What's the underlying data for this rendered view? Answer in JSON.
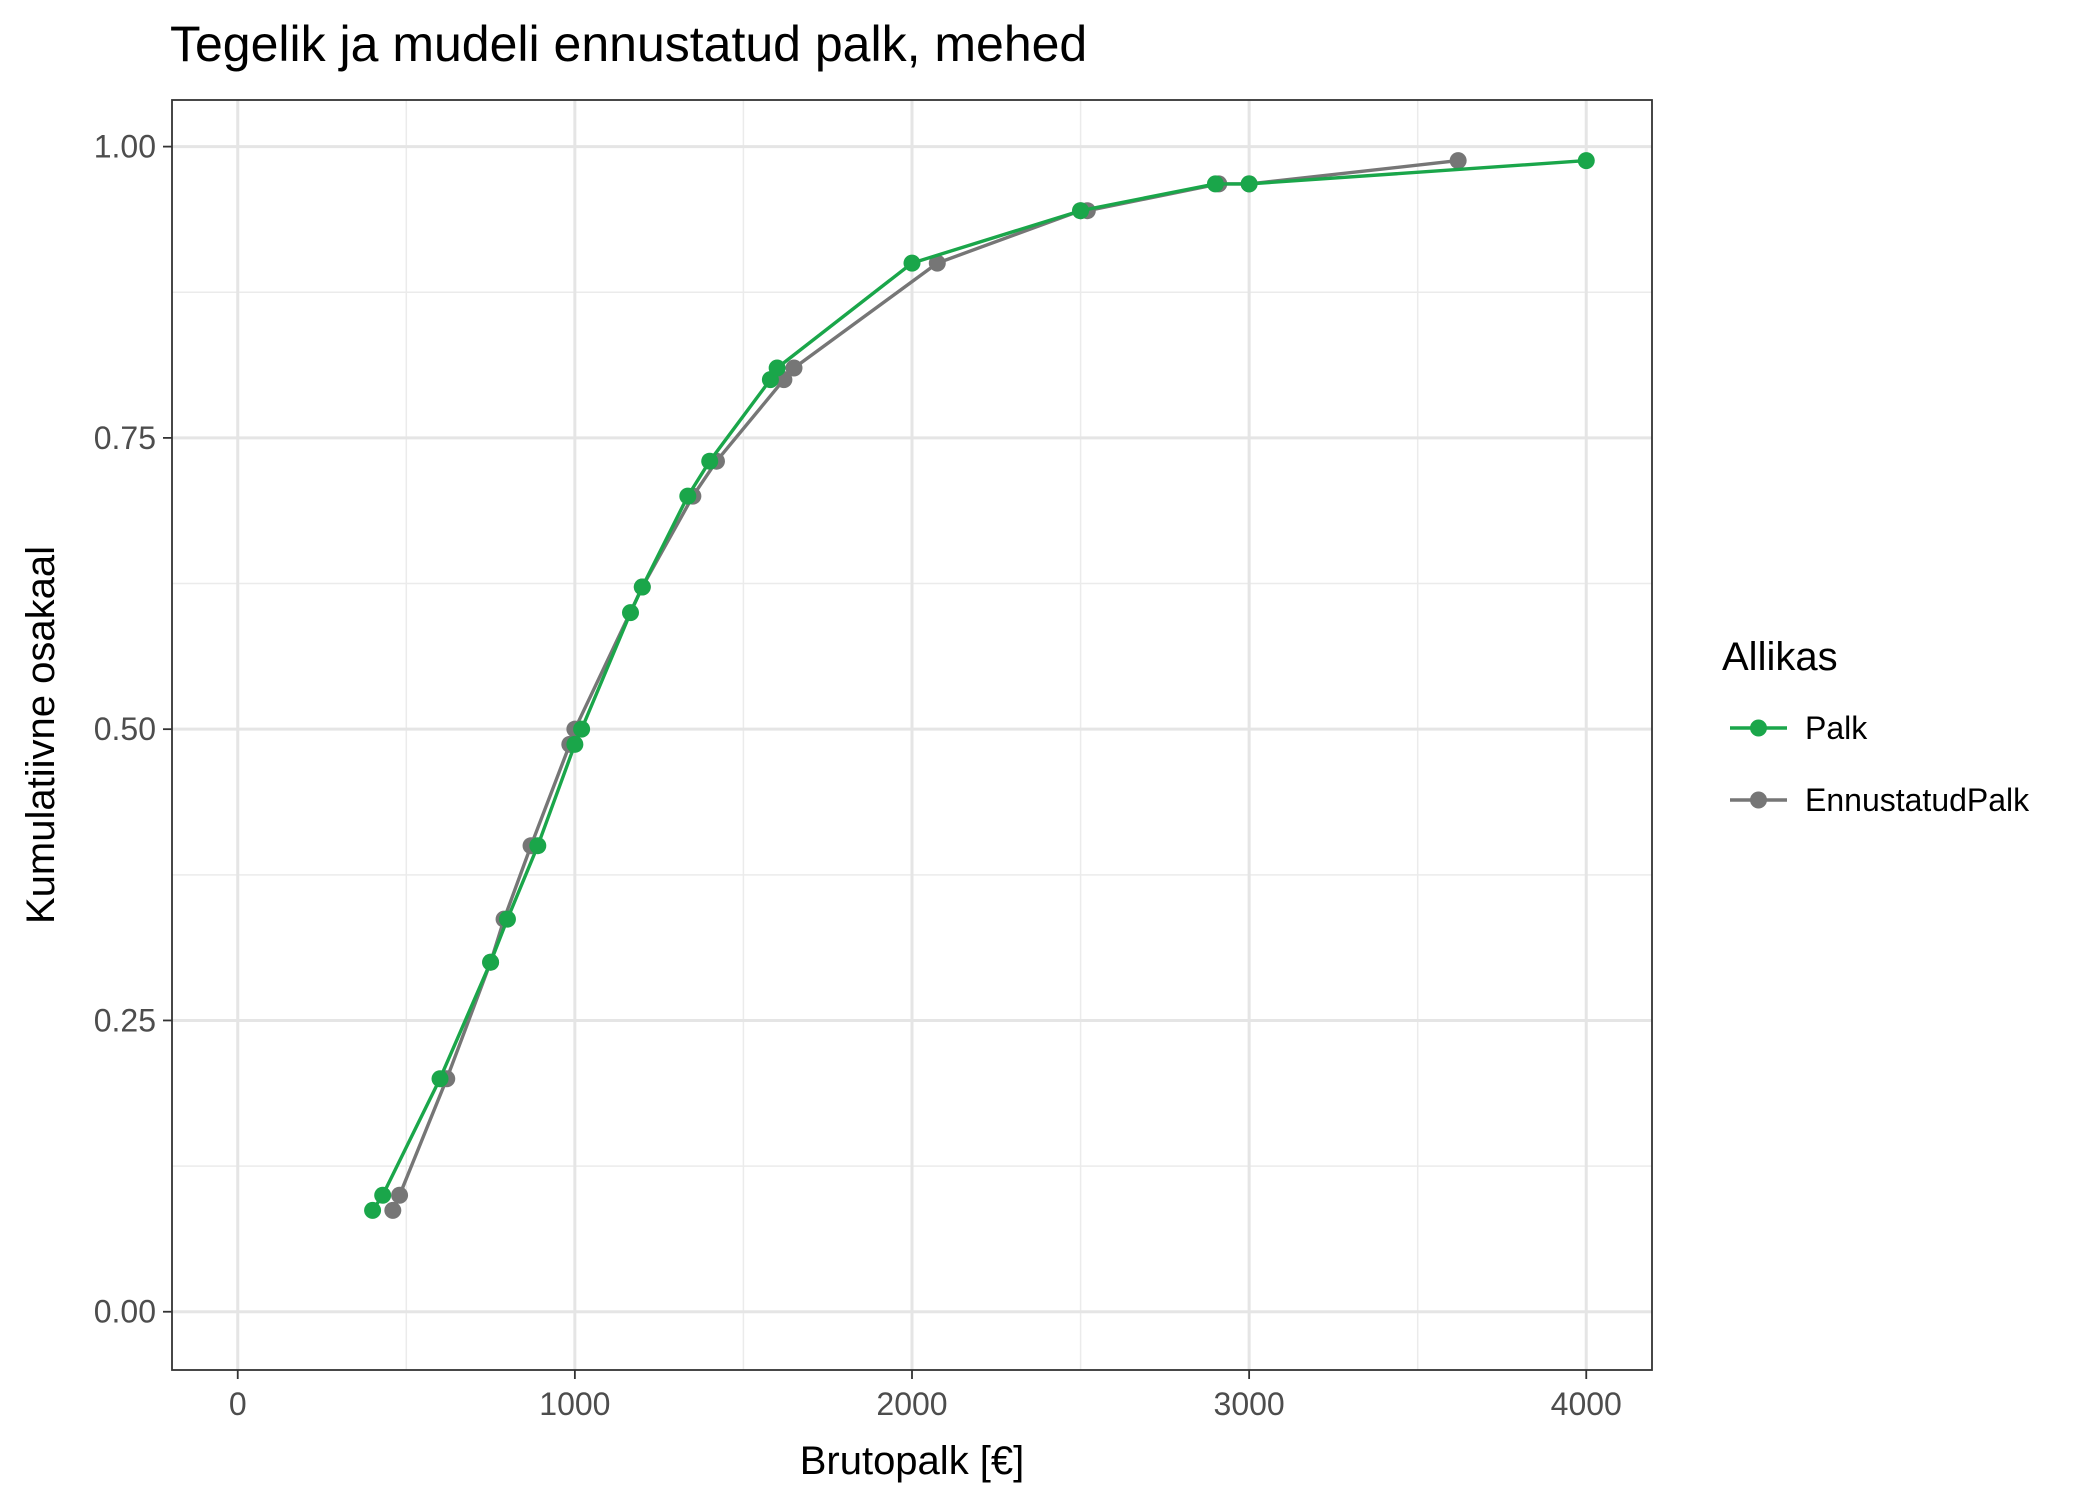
{
  "chart_data": {
    "type": "line",
    "title": "Tegelik ja mudeli ennustatud palk, mehed",
    "xlabel": "Brutopalk [€]",
    "ylabel": "Kumulatiivne osakaal",
    "xlim": [
      -195,
      4195
    ],
    "ylim": [
      -0.05,
      1.04
    ],
    "x_ticks": [
      0,
      1000,
      2000,
      3000,
      4000
    ],
    "x_tick_labels": [
      "0",
      "1000",
      "2000",
      "3000",
      "4000"
    ],
    "y_ticks": [
      0,
      0.25,
      0.5,
      0.75,
      1.0
    ],
    "y_tick_labels": [
      "0.00",
      "0.25",
      "0.50",
      "0.75",
      "1.00"
    ],
    "grid": true,
    "legend": {
      "title": "Allikas",
      "position": "right"
    },
    "series": [
      {
        "name": "Palk",
        "color": "#1aa64a",
        "x": [
          400,
          430,
          600,
          750,
          800,
          890,
          1000,
          1020,
          1165,
          1200,
          1335,
          1400,
          1580,
          1600,
          2000,
          2500,
          2900,
          3000,
          4000
        ],
        "y": [
          0.087,
          0.1,
          0.2,
          0.3,
          0.337,
          0.4,
          0.487,
          0.5,
          0.6,
          0.622,
          0.7,
          0.73,
          0.8,
          0.81,
          0.9,
          0.945,
          0.968,
          0.968,
          0.988
        ]
      },
      {
        "name": "EnnustatudPalk",
        "color": "#767676",
        "x": [
          460,
          480,
          620,
          750,
          790,
          870,
          985,
          1000,
          1200,
          1350,
          1420,
          1620,
          1650,
          2075,
          2500,
          2520,
          2910,
          3000,
          3620
        ],
        "y": [
          0.087,
          0.1,
          0.2,
          0.3,
          0.337,
          0.4,
          0.487,
          0.5,
          0.622,
          0.7,
          0.73,
          0.8,
          0.81,
          0.9,
          0.945,
          0.945,
          0.968,
          0.968,
          0.988
        ]
      }
    ]
  }
}
